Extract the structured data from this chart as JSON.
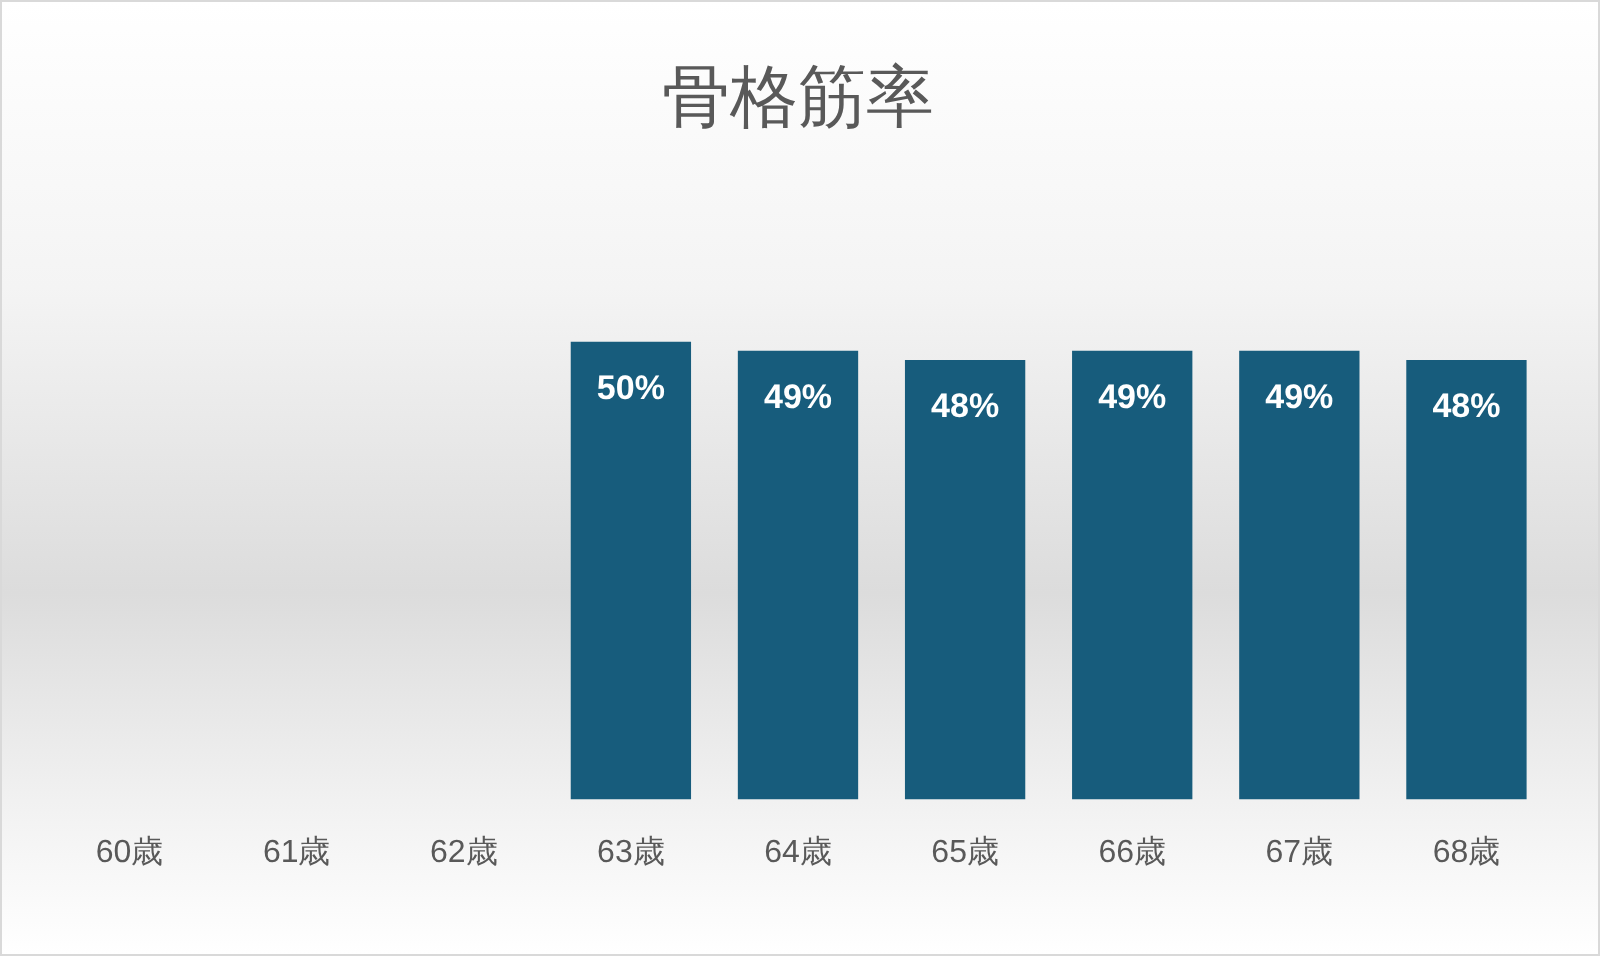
{
  "chart_data": {
    "type": "bar",
    "title": "骨格筋率",
    "categories": [
      "60歳",
      "61歳",
      "62歳",
      "63歳",
      "64歳",
      "65歳",
      "66歳",
      "67歳",
      "68歳"
    ],
    "values": [
      null,
      null,
      null,
      50,
      49,
      48,
      49,
      49,
      48
    ],
    "value_labels": [
      null,
      null,
      null,
      "50%",
      "49%",
      "48%",
      "49%",
      "49%",
      "48%"
    ],
    "color": "#175c7c",
    "tick_labels": "x"
  }
}
